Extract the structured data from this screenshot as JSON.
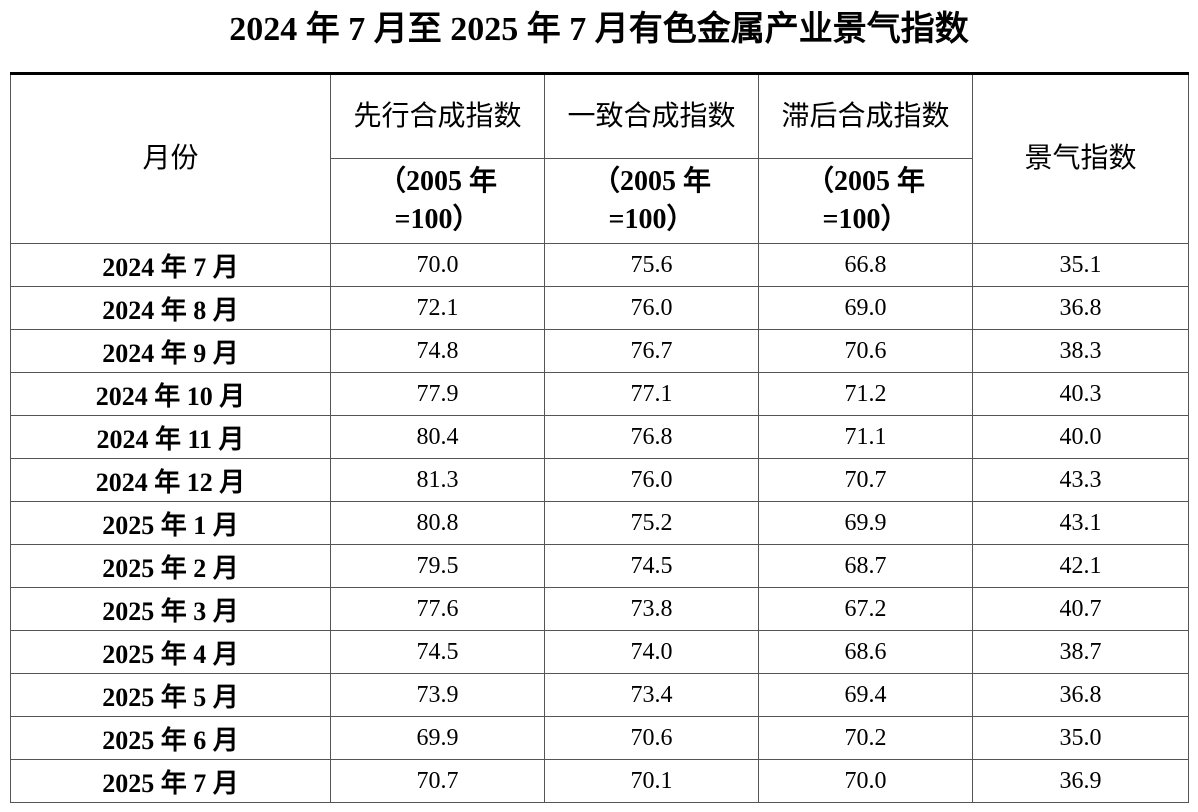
{
  "title": "2024 年 7 月至 2025 年 7 月有色金属产业景气指数",
  "table": {
    "header": {
      "month": "月份",
      "columns": [
        {
          "name": "先行合成指数",
          "unit": "（2005 年=100）"
        },
        {
          "name": "一致合成指数",
          "unit": "（2005 年=100）"
        },
        {
          "name": "滞后合成指数",
          "unit": "（2005 年=100）"
        }
      ],
      "index": "景气指数"
    },
    "rows": [
      [
        "2024 年 7 月",
        "70.0",
        "75.6",
        "66.8",
        "35.1"
      ],
      [
        "2024 年 8 月",
        "72.1",
        "76.0",
        "69.0",
        "36.8"
      ],
      [
        "2024 年 9 月",
        "74.8",
        "76.7",
        "70.6",
        "38.3"
      ],
      [
        "2024 年 10 月",
        "77.9",
        "77.1",
        "71.2",
        "40.3"
      ],
      [
        "2024 年 11 月",
        "80.4",
        "76.8",
        "71.1",
        "40.0"
      ],
      [
        "2024 年 12 月",
        "81.3",
        "76.0",
        "70.7",
        "43.3"
      ],
      [
        "2025 年 1 月",
        "80.8",
        "75.2",
        "69.9",
        "43.1"
      ],
      [
        "2025 年 2 月",
        "79.5",
        "74.5",
        "68.7",
        "42.1"
      ],
      [
        "2025 年 3 月",
        "77.6",
        "73.8",
        "67.2",
        "40.7"
      ],
      [
        "2025 年 4 月",
        "74.5",
        "74.0",
        "68.6",
        "38.7"
      ],
      [
        "2025 年 5 月",
        "73.9",
        "73.4",
        "69.4",
        "36.8"
      ],
      [
        "2025 年 6 月",
        "69.9",
        "70.6",
        "70.2",
        "35.0"
      ],
      [
        "2025 年 7 月",
        "70.7",
        "70.1",
        "70.0",
        "36.9"
      ]
    ]
  }
}
